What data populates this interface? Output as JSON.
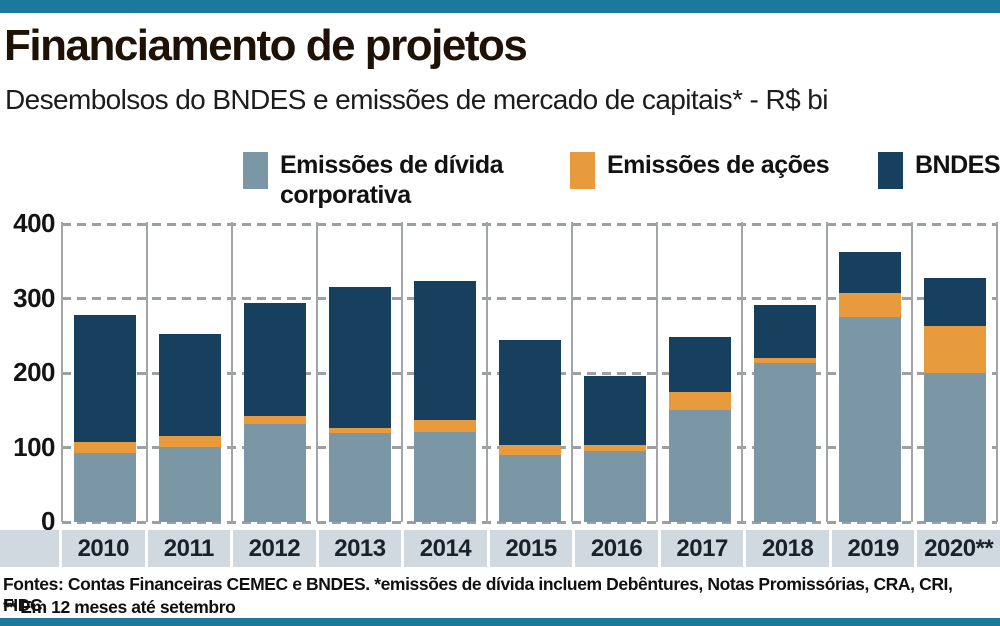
{
  "header": {
    "title": "Financiamento de projetos",
    "subtitle": "Desembolsos do BNDES e emissões de mercado de capitais* - R$ bi"
  },
  "footer": {
    "source_line": "Fontes: Contas Financeiras CEMEC e BNDES. *emissões de dívida incluem Debêntures, Notas Promissórias, CRA, CRI, FIDC.",
    "note_line": "** Em 12 meses até setembro"
  },
  "colors": {
    "accent_bar": "#1b799c",
    "debt": "#7b97a6",
    "equity": "#e89b3c",
    "bndes": "#16405e",
    "band": "#cfd9df",
    "grid": "#9aa0a3",
    "separator": "#a2a6a9"
  },
  "chart_data": {
    "type": "bar",
    "stacked": true,
    "title": "Financiamento de projetos",
    "subtitle": "Desembolsos do BNDES e emissões de mercado de capitais* - R$ bi",
    "unit": "R$ bi",
    "categories": [
      "2010",
      "2011",
      "2012",
      "2013",
      "2014",
      "2015",
      "2016",
      "2017",
      "2018",
      "2019",
      "2020**"
    ],
    "series": [
      {
        "name": "Emissões de dívida corporativa",
        "color_key": "debt",
        "values": [
          92,
          101,
          131,
          119,
          121,
          90,
          95,
          151,
          214,
          275,
          200
        ]
      },
      {
        "name": "Emissões de ações",
        "color_key": "equity",
        "values": [
          15,
          15,
          11,
          7,
          16,
          14,
          8,
          24,
          6,
          32,
          63
        ]
      },
      {
        "name": "BNDES",
        "color_key": "bndes",
        "values": [
          171,
          136,
          152,
          189,
          187,
          140,
          93,
          73,
          71,
          56,
          64
        ]
      }
    ],
    "totals": [
      278,
      252,
      294,
      315,
      324,
      244,
      196,
      248,
      291,
      363,
      327
    ],
    "ylim": [
      0,
      400
    ],
    "yticks": [
      0,
      100,
      200,
      300,
      400
    ],
    "grid": "dashed-horizontal",
    "legend_position": "top"
  }
}
